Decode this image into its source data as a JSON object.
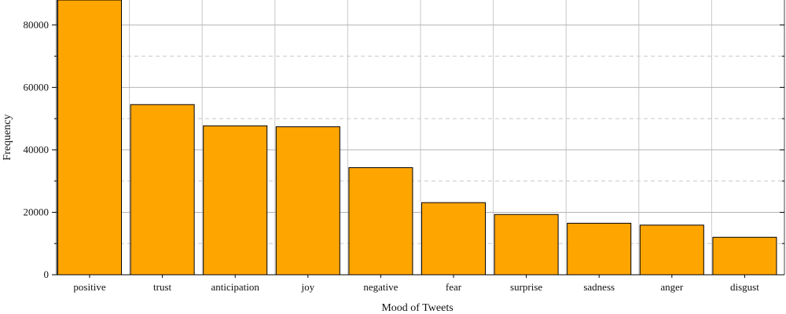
{
  "chart_data": {
    "type": "bar",
    "categories": [
      "positive",
      "trust",
      "anticipation",
      "joy",
      "negative",
      "fear",
      "surprise",
      "sadness",
      "anger",
      "disgust"
    ],
    "values": [
      88000,
      54500,
      47700,
      47400,
      34300,
      23100,
      19300,
      16500,
      15900,
      12000
    ],
    "xlabel": "Mood of Tweets",
    "ylabel": "Frequency",
    "ylim": [
      0,
      88000
    ],
    "yticks": [
      0,
      20000,
      40000,
      60000,
      80000
    ],
    "yticks_minor": [
      10000,
      30000,
      50000,
      70000
    ],
    "grid": true,
    "bar_color": "#FFA500",
    "bar_edge_color": "#000000"
  }
}
